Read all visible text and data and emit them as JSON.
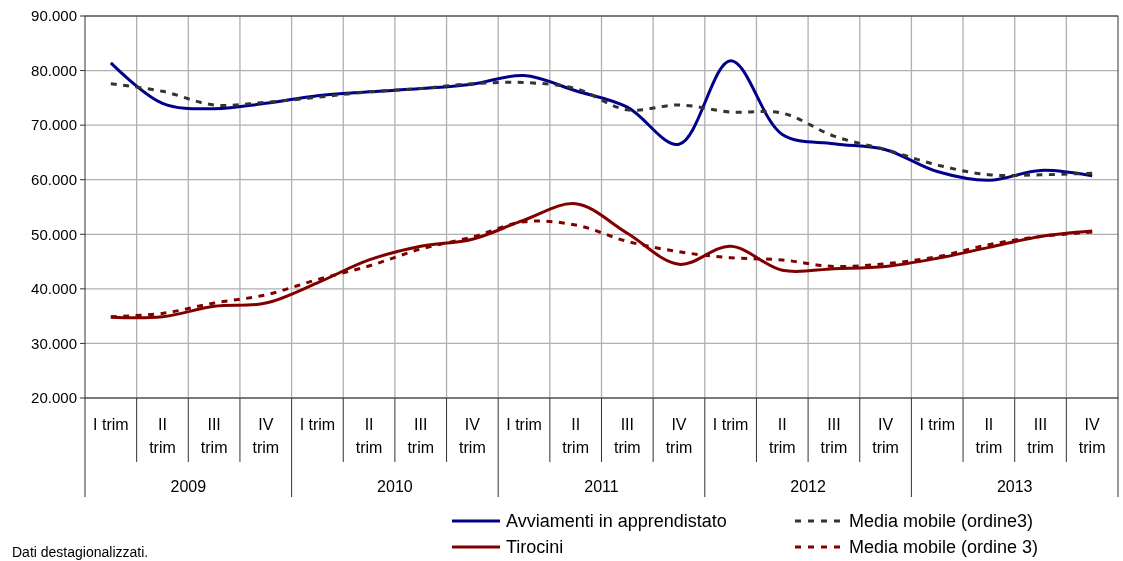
{
  "chart_data": {
    "type": "line",
    "categories": [
      "I trim",
      "II trim",
      "III trim",
      "IV trim",
      "I trim",
      "II trim",
      "III trim",
      "IV trim",
      "I trim",
      "II trim",
      "III trim",
      "IV trim",
      "I trim",
      "II trim",
      "III trim",
      "IV trim",
      "I trim",
      "II trim",
      "III trim",
      "IV trim"
    ],
    "series": [
      {
        "name": "Avviamenti in apprendistato",
        "color": "#00008b",
        "line_style": "solid",
        "values": [
          81400,
          74000,
          73000,
          74000,
          75400,
          76100,
          76700,
          77500,
          79100,
          76300,
          73300,
          66500,
          81800,
          68300,
          66600,
          65500,
          61500,
          59900,
          61700,
          60700
        ]
      },
      {
        "name": "Media mobile (ordine3)",
        "color": "#333333",
        "line_style": "dashed",
        "values": [
          77600,
          76200,
          73700,
          74200,
          75100,
          76100,
          76700,
          77600,
          77800,
          76700,
          72800,
          73700,
          72400,
          72200,
          68000,
          65500,
          62700,
          60900,
          60900,
          61200
        ]
      },
      {
        "name": "Tirocini",
        "color": "#800000",
        "line_style": "solid",
        "values": [
          34800,
          34900,
          36800,
          37400,
          41100,
          45300,
          47800,
          49100,
          52600,
          55600,
          50200,
          44500,
          47800,
          43400,
          43700,
          44100,
          45600,
          47600,
          49600,
          50600
        ]
      },
      {
        "name": "Media mobile (ordine 3)",
        "color": "#800000",
        "line_style": "dashed",
        "values": [
          34900,
          35500,
          37400,
          38900,
          41700,
          44200,
          47300,
          49500,
          52300,
          51700,
          48700,
          46800,
          45700,
          45300,
          44100,
          44600,
          45900,
          48100,
          49600,
          50400
        ]
      }
    ],
    "ylim": [
      20000,
      90000
    ],
    "yticks": [
      {
        "value": 20000,
        "label": "20.000"
      },
      {
        "value": 30000,
        "label": "30.000"
      },
      {
        "value": 40000,
        "label": "40.000"
      },
      {
        "value": 50000,
        "label": "50.000"
      },
      {
        "value": 60000,
        "label": "60.000"
      },
      {
        "value": 70000,
        "label": "70.000"
      },
      {
        "value": 80000,
        "label": "80.000"
      },
      {
        "value": 90000,
        "label": "90.000"
      }
    ],
    "grid": true,
    "legend": "bottom",
    "marker": "none",
    "annotations": [
      "2009",
      "2010",
      "2011",
      "2012",
      "2013",
      "Dati destagionalizzati."
    ]
  }
}
